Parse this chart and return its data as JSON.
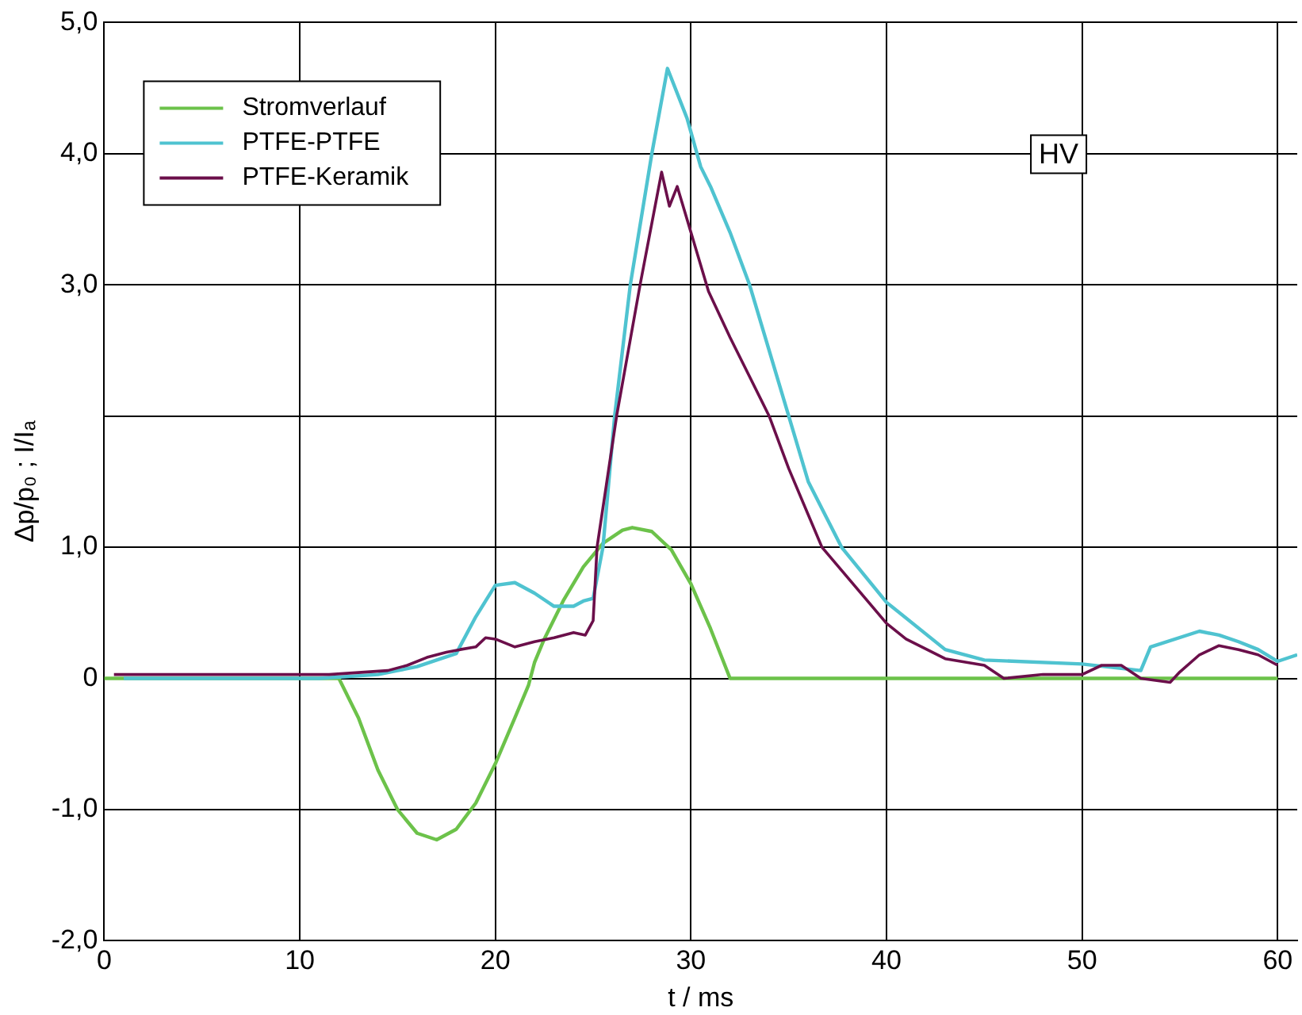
{
  "chart_data": {
    "type": "line",
    "xlabel": "t / ms",
    "ylabel": "Δp/p₀ ; I/Iₐ",
    "annotations": [
      "HV"
    ],
    "xlim": [
      0,
      61
    ],
    "xticks": [
      0,
      10,
      20,
      30,
      40,
      50,
      60
    ],
    "ylim": [
      -2,
      5
    ],
    "yticks": [
      {
        "value": -2,
        "label": "-2,0"
      },
      {
        "value": -1,
        "label": "-1,0"
      },
      0,
      {
        "value": 1,
        "label": "1,0"
      },
      {
        "value": 2,
        "label": null
      },
      {
        "value": 3,
        "label": "3,0"
      },
      {
        "value": 4,
        "label": "4,0"
      },
      {
        "value": 5,
        "label": "5,0"
      }
    ],
    "grid": true,
    "legend": "top left",
    "marker": "none",
    "line_style": "solid",
    "series": [
      {
        "name": "Stromverlauf",
        "color": "#6cc24a",
        "x": [
          0,
          12,
          13,
          14,
          15,
          16,
          17,
          18,
          19,
          20,
          21,
          21.7,
          22,
          22.5,
          23.5,
          24.5,
          25.5,
          26.5,
          27,
          28,
          29,
          30,
          31,
          32,
          60
        ],
        "values": [
          0,
          0,
          -0.3,
          -0.7,
          -1.0,
          -1.18,
          -1.23,
          -1.15,
          -0.95,
          -0.65,
          -0.3,
          -0.05,
          0.12,
          0.3,
          0.6,
          0.85,
          1.03,
          1.13,
          1.15,
          1.12,
          0.98,
          0.72,
          0.38,
          0,
          0
        ]
      },
      {
        "name": "PTFE-PTFE",
        "color": "#4fc3d0",
        "x": [
          1,
          11,
          14,
          15,
          16,
          17,
          18,
          19,
          19.5,
          20,
          21,
          22,
          23,
          24,
          24.5,
          25,
          25.5,
          26.1,
          26.9,
          28,
          28.8,
          29.8,
          30.5,
          31,
          32,
          33,
          35,
          36,
          37.7,
          40,
          43,
          45,
          50,
          53,
          53.5,
          56,
          57,
          58,
          59,
          60,
          61
        ],
        "values": [
          0,
          0,
          0.03,
          0.06,
          0.09,
          0.14,
          0.19,
          0.47,
          0.59,
          0.71,
          0.73,
          0.65,
          0.55,
          0.55,
          0.59,
          0.61,
          1.0,
          2.0,
          3.0,
          4.0,
          4.65,
          4.27,
          3.9,
          3.75,
          3.4,
          3.0,
          2.0,
          1.5,
          1.0,
          0.58,
          0.22,
          0.14,
          0.11,
          0.06,
          0.24,
          0.36,
          0.33,
          0.28,
          0.22,
          0.13,
          0.18
        ]
      },
      {
        "name": "PTFE-Keramik",
        "color": "#6b0f4a",
        "x": [
          0.5,
          11.5,
          14.5,
          15.5,
          16.5,
          17.5,
          18.2,
          19,
          19.5,
          20,
          21,
          22,
          23,
          24,
          24.6,
          25,
          25.2,
          26.2,
          27.4,
          28.5,
          28.9,
          29.3,
          30,
          30.9,
          32,
          33,
          34,
          35,
          36.7,
          40,
          41,
          43,
          45,
          46,
          48,
          50,
          51,
          52,
          53,
          54.5,
          55,
          56,
          57,
          58,
          59,
          60
        ],
        "values": [
          0.03,
          0.03,
          0.06,
          0.1,
          0.16,
          0.2,
          0.22,
          0.24,
          0.31,
          0.3,
          0.24,
          0.28,
          0.31,
          0.35,
          0.33,
          0.44,
          1.0,
          2.0,
          3.0,
          3.86,
          3.6,
          3.75,
          3.4,
          2.95,
          2.6,
          2.3,
          2.0,
          1.6,
          1.0,
          0.42,
          0.3,
          0.15,
          0.1,
          0.0,
          0.03,
          0.03,
          0.1,
          0.1,
          0.0,
          -0.03,
          0.05,
          0.18,
          0.25,
          0.22,
          0.18,
          0.1
        ]
      }
    ]
  }
}
